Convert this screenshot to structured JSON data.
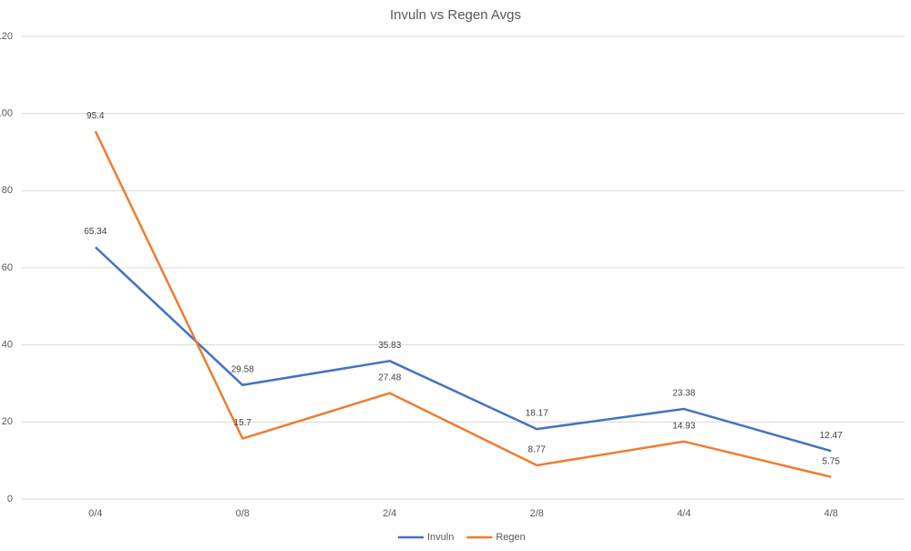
{
  "chart_data": {
    "type": "line",
    "title": "Invuln vs Regen Avgs",
    "categories": [
      "0/4",
      "0/8",
      "2/4",
      "2/8",
      "4/4",
      "4/8"
    ],
    "series": [
      {
        "name": "Invuln",
        "color": "#4472c4",
        "values": [
          65.34,
          29.58,
          35.83,
          18.17,
          23.38,
          12.47
        ]
      },
      {
        "name": "Regen",
        "color": "#ed7d31",
        "values": [
          95.4,
          15.7,
          27.48,
          8.77,
          14.93,
          5.75
        ]
      }
    ],
    "ylim": [
      0,
      120
    ],
    "yticks": [
      0,
      20,
      40,
      60,
      80,
      100,
      120
    ],
    "grid": true,
    "legend": "bottom"
  }
}
